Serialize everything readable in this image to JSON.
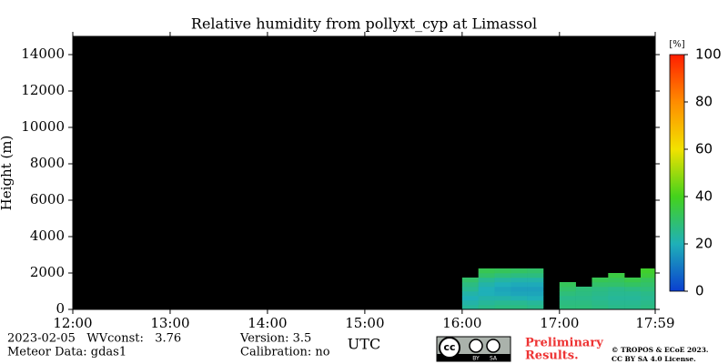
{
  "chart_data": {
    "type": "heatmap",
    "title": "Relative humidity from pollyxt_cyp at Limassol",
    "xlabel": "UTC",
    "ylabel": "Height (m)",
    "xlim": [
      0,
      359
    ],
    "xticks": [
      {
        "value": 0,
        "label": "12:00"
      },
      {
        "value": 60,
        "label": "13:00"
      },
      {
        "value": 120,
        "label": "14:00"
      },
      {
        "value": 180,
        "label": "15:00"
      },
      {
        "value": 240,
        "label": "16:00"
      },
      {
        "value": 300,
        "label": "17:00"
      },
      {
        "value": 359,
        "label": "17:59"
      }
    ],
    "ylim": [
      0,
      15000
    ],
    "yticks": [
      0,
      2000,
      4000,
      6000,
      8000,
      10000,
      12000,
      14000
    ],
    "background": "#000000",
    "x_bins": [
      240,
      250,
      260,
      270,
      280,
      290,
      300,
      310,
      320,
      330,
      340,
      350,
      359
    ],
    "y_bins": [
      0,
      250,
      500,
      750,
      1000,
      1250,
      1500,
      1750,
      2000,
      2250
    ],
    "z": [
      [
        24,
        26,
        27,
        27,
        26,
        null,
        28,
        28,
        27,
        26,
        26,
        27
      ],
      [
        22,
        24,
        25,
        25,
        24,
        null,
        27,
        27,
        26,
        25,
        25,
        26
      ],
      [
        20,
        22,
        22,
        21,
        20,
        null,
        26,
        26,
        25,
        24,
        24,
        25
      ],
      [
        22,
        20,
        19,
        18,
        18,
        null,
        28,
        27,
        26,
        25,
        25,
        26
      ],
      [
        25,
        20,
        18,
        17,
        17,
        null,
        30,
        28,
        27,
        26,
        27,
        28
      ],
      [
        27,
        22,
        20,
        19,
        19,
        null,
        32,
        null,
        30,
        30,
        31,
        30
      ],
      [
        30,
        25,
        23,
        22,
        22,
        null,
        null,
        null,
        33,
        32,
        34,
        32
      ],
      [
        null,
        30,
        28,
        27,
        27,
        null,
        null,
        null,
        null,
        35,
        null,
        36
      ],
      [
        null,
        33,
        32,
        31,
        30,
        null,
        null,
        null,
        null,
        null,
        null,
        38
      ]
    ],
    "colorbar_label": "[%]",
    "clim": [
      0,
      100
    ],
    "cticks": [
      0,
      20,
      40,
      60,
      80,
      100
    ],
    "colormap": [
      "#0a3fd0",
      "#1fb0b8",
      "#44d21c",
      "#f2e200",
      "#ff8c00",
      "#ff1e00"
    ]
  },
  "footer": {
    "date_line": "2023-02-05   WVconst:   3.76",
    "meteor": "Meteor Data: gdas1",
    "version": "Version: 3.5",
    "calibration": "Calibration: no",
    "badge": [
      "cc",
      "BY",
      "SA"
    ],
    "preliminary": [
      "Preliminary",
      "Results."
    ],
    "copyright": [
      "© TROPOS & ECoE 2023.",
      "CC BY SA 4.0 License."
    ]
  }
}
